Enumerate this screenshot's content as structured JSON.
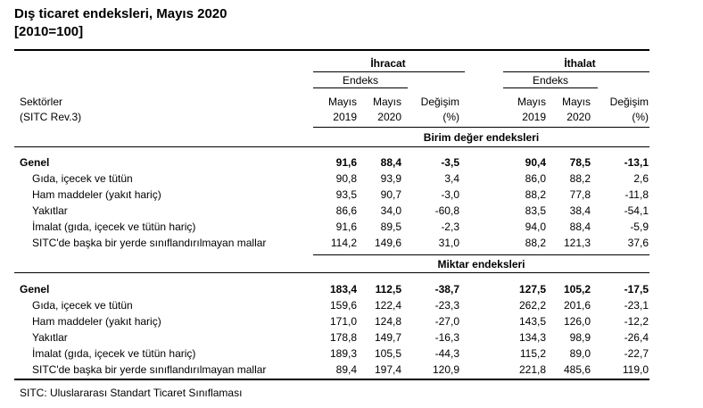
{
  "title": {
    "line1": "Dış ticaret endeksleri, Mayıs 2020",
    "line2": "[2010=100]"
  },
  "header": {
    "export_group": "İhracat",
    "import_group": "İthalat",
    "index_label_export": "Endeks",
    "index_label_import": "Endeks",
    "sectors_line1": "Sektörler",
    "sectors_line2": "(SITC Rev.3)",
    "col_may": "Mayıs",
    "col_year_2019": "2019",
    "col_year_2020": "2020",
    "col_change": "Değişim",
    "col_pct": "(%)"
  },
  "sections": [
    {
      "title": "Birim değer endeksleri",
      "rows": [
        {
          "label": "Genel",
          "bold": true,
          "values": [
            "91,6",
            "88,4",
            "-3,5",
            "90,4",
            "78,5",
            "-13,1"
          ]
        },
        {
          "label": "Gıda, içecek ve tütün",
          "bold": false,
          "values": [
            "90,8",
            "93,9",
            "3,4",
            "86,0",
            "88,2",
            "2,6"
          ]
        },
        {
          "label": "Ham maddeler (yakıt hariç)",
          "bold": false,
          "values": [
            "93,5",
            "90,7",
            "-3,0",
            "88,2",
            "77,8",
            "-11,8"
          ]
        },
        {
          "label": "Yakıtlar",
          "bold": false,
          "values": [
            "86,6",
            "34,0",
            "-60,8",
            "83,5",
            "38,4",
            "-54,1"
          ]
        },
        {
          "label": "İmalat (gıda, içecek ve tütün hariç)",
          "bold": false,
          "values": [
            "91,6",
            "89,5",
            "-2,3",
            "94,0",
            "88,4",
            "-5,9"
          ]
        },
        {
          "label": "SITC'de başka bir yerde sınıflandırılmayan mallar",
          "bold": false,
          "values": [
            "114,2",
            "149,6",
            "31,0",
            "88,2",
            "121,3",
            "37,6"
          ]
        }
      ]
    },
    {
      "title": "Miktar endeksleri",
      "rows": [
        {
          "label": "Genel",
          "bold": true,
          "values": [
            "183,4",
            "112,5",
            "-38,7",
            "127,5",
            "105,2",
            "-17,5"
          ]
        },
        {
          "label": "Gıda, içecek ve tütün",
          "bold": false,
          "values": [
            "159,6",
            "122,4",
            "-23,3",
            "262,2",
            "201,6",
            "-23,1"
          ]
        },
        {
          "label": "Ham maddeler (yakıt hariç)",
          "bold": false,
          "values": [
            "171,0",
            "124,8",
            "-27,0",
            "143,5",
            "126,0",
            "-12,2"
          ]
        },
        {
          "label": "Yakıtlar",
          "bold": false,
          "values": [
            "178,8",
            "149,7",
            "-16,3",
            "134,3",
            "98,9",
            "-26,4"
          ]
        },
        {
          "label": "İmalat (gıda, içecek ve tütün hariç)",
          "bold": false,
          "values": [
            "189,3",
            "105,5",
            "-44,3",
            "115,2",
            "89,0",
            "-22,7"
          ]
        },
        {
          "label": "SITC'de başka bir yerde sınıflandırılmayan mallar",
          "bold": false,
          "values": [
            "89,4",
            "197,4",
            "120,9",
            "221,8",
            "485,6",
            "119,0"
          ]
        }
      ]
    }
  ],
  "footnote": "SITC: Uluslararası Standart Ticaret Sınıflaması"
}
